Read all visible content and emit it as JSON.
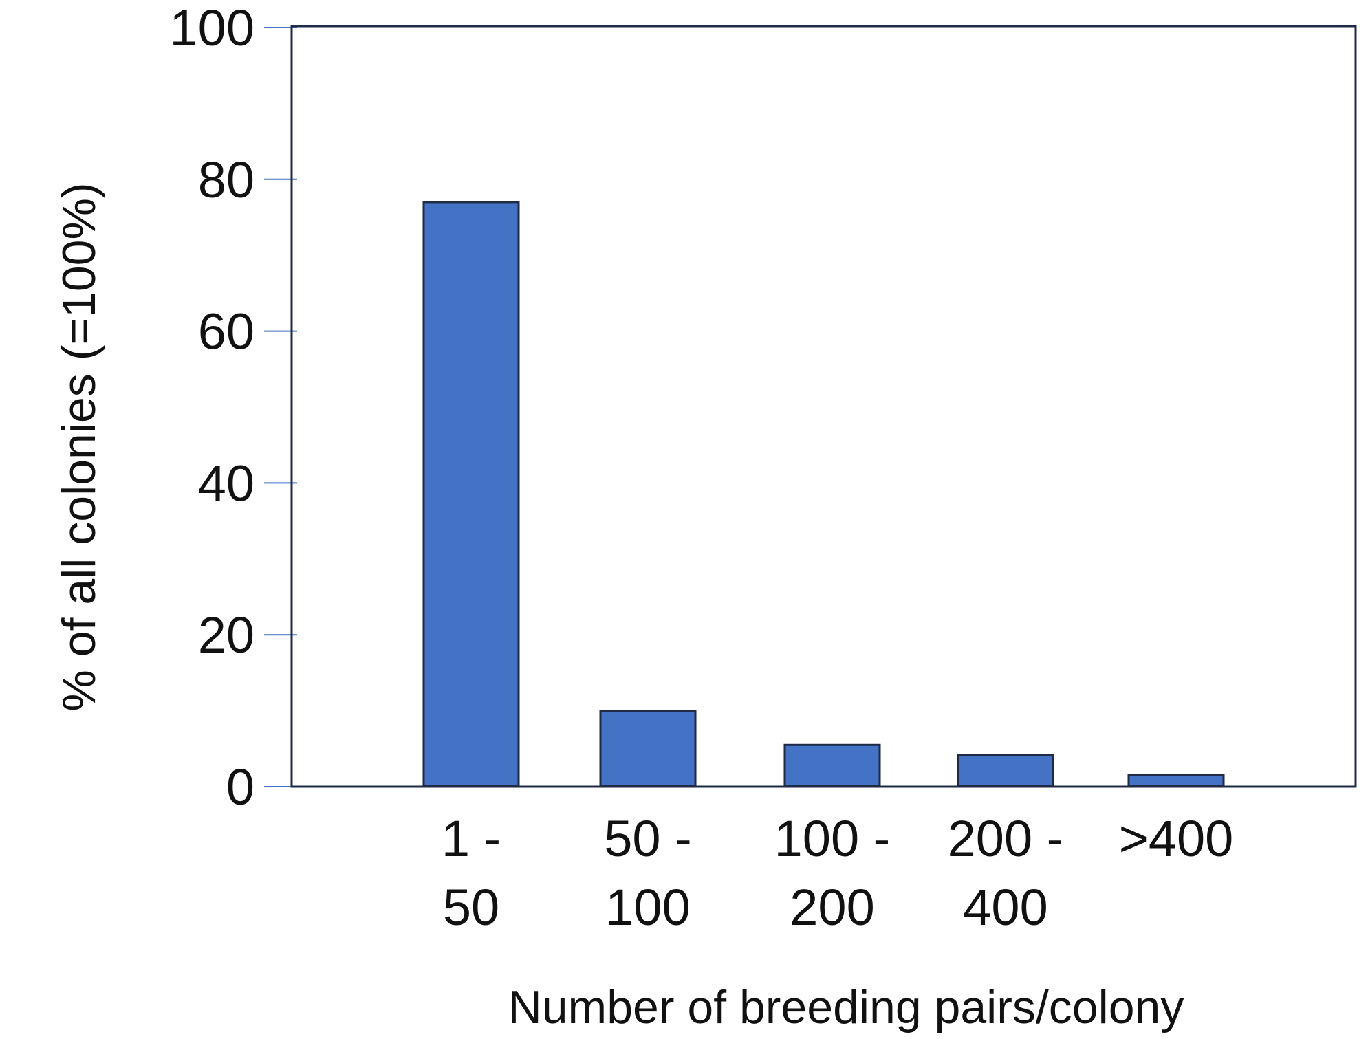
{
  "chart_data": {
    "type": "bar",
    "title": "",
    "xlabel": "Number of breeding pairs/colony",
    "ylabel": "% of all colonies (=100%)",
    "ylim": [
      0,
      100
    ],
    "yticks": [
      "0",
      "20",
      "40",
      "60",
      "80",
      "100"
    ],
    "categories": [
      {
        "line1": "1 -",
        "line2": "50"
      },
      {
        "line1": "50 -",
        "line2": "100"
      },
      {
        "line1": "100 -",
        "line2": "200"
      },
      {
        "line1": "200 -",
        "line2": "400"
      },
      {
        "line1": ">400",
        "line2": ""
      }
    ],
    "values": [
      77,
      10,
      5.5,
      4.2,
      1.5
    ],
    "grid": false,
    "legend": "none",
    "colors": {
      "bar_fill": "#4472C4",
      "bar_stroke": "#1F2A44",
      "frame": "#1F2A44",
      "ticks": "#4472C4"
    }
  }
}
